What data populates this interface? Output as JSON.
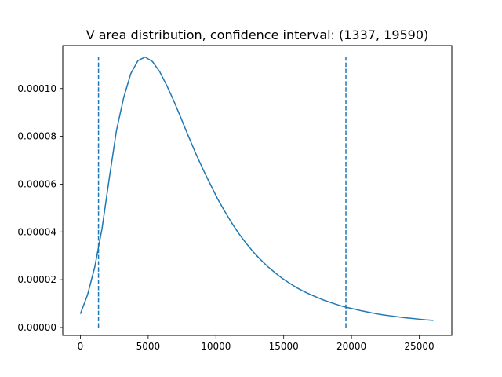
{
  "chart_data": {
    "type": "line",
    "title": "V area distribution, confidence interval:  (1337, 19590)",
    "xlabel": "",
    "ylabel": "",
    "xlim": [
      -1300,
      27400
    ],
    "ylim": [
      -3.3e-06,
      0.000118
    ],
    "x_ticks": [
      0,
      5000,
      10000,
      15000,
      20000,
      25000
    ],
    "x_tick_labels": [
      "0",
      "5000",
      "10000",
      "15000",
      "20000",
      "25000"
    ],
    "y_ticks": [
      0,
      2e-05,
      4e-05,
      6e-05,
      8e-05,
      0.0001
    ],
    "y_tick_labels": [
      "0.00000",
      "0.00002",
      "0.00004",
      "0.00006",
      "0.00008",
      "0.00010"
    ],
    "grid": false,
    "line_color": "#1f77b4",
    "series": [
      {
        "style": "solid",
        "x": [
          0,
          530,
          1060,
          1600,
          2130,
          2660,
          3190,
          3720,
          4250,
          4780,
          5320,
          5850,
          6380,
          6910,
          7440,
          7970,
          8500,
          9040,
          9570,
          10100,
          10630,
          11160,
          11690,
          12220,
          12760,
          13290,
          13820,
          14350,
          14880,
          15410,
          15940,
          16480,
          17010,
          17540,
          18070,
          18600,
          19130,
          19660,
          20200,
          20730,
          21260,
          21790,
          22320,
          22850,
          23380,
          23920,
          24450,
          24980,
          25510,
          26040
        ],
        "y": [
          5.7e-06,
          1.37e-05,
          2.53e-05,
          4.15e-05,
          6.24e-05,
          8.24e-05,
          9.61e-05,
          0.0001063,
          0.0001117,
          0.0001132,
          0.0001113,
          0.0001071,
          0.0001012,
          9.46e-05,
          8.74e-05,
          8.01e-05,
          7.3e-05,
          6.63e-05,
          6.01e-05,
          5.41e-05,
          4.88e-05,
          4.38e-05,
          3.93e-05,
          3.53e-05,
          3.16e-05,
          2.84e-05,
          2.55e-05,
          2.3e-05,
          2.06e-05,
          1.86e-05,
          1.67e-05,
          1.51e-05,
          1.37e-05,
          1.24e-05,
          1.12e-05,
          1.02e-05,
          9.2e-06,
          8.4e-06,
          7.7e-06,
          7e-06,
          6.4e-06,
          5.8e-06,
          5.3e-06,
          4.9e-06,
          4.5e-06,
          4.1e-06,
          3.8e-06,
          3.5e-06,
          3.2e-06,
          3e-06
        ]
      }
    ],
    "vlines": [
      {
        "x": 1337,
        "y_range": [
          0,
          0.0001132
        ],
        "style": "dashed"
      },
      {
        "x": 19590,
        "y_range": [
          0,
          0.0001132
        ],
        "style": "dashed"
      }
    ]
  }
}
